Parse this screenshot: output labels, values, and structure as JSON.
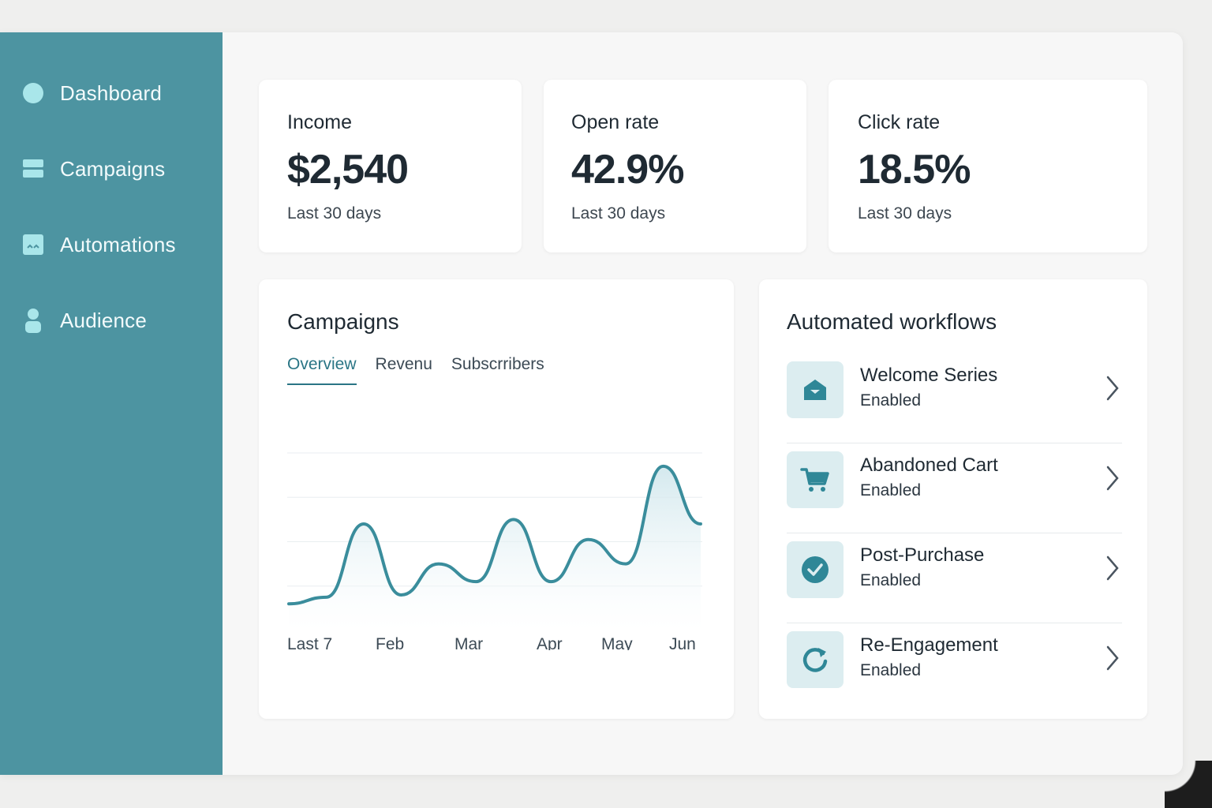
{
  "sidebar": {
    "items": [
      {
        "label": "Dashboard",
        "icon": "circle-icon"
      },
      {
        "label": "Campaigns",
        "icon": "layers-icon"
      },
      {
        "label": "Automations",
        "icon": "automation-icon"
      },
      {
        "label": "Audience",
        "icon": "person-icon"
      }
    ]
  },
  "stats": [
    {
      "title": "Income",
      "value": "$2,540",
      "sub": "Last 30 days"
    },
    {
      "title": "Open rate",
      "value": "42.9%",
      "sub": "Last 30 days"
    },
    {
      "title": "Click rate",
      "value": "18.5%",
      "sub": "Last 30 days"
    }
  ],
  "campaigns": {
    "title": "Campaigns",
    "tabs": [
      "Overview",
      "Revenu",
      "Subscrribers"
    ],
    "active_tab": "Overview"
  },
  "chart_data": {
    "type": "area",
    "x_labels": [
      "Last 7",
      "Feb",
      "Mar",
      "Apr",
      "May",
      "Jun"
    ],
    "values": [
      12,
      15,
      48,
      16,
      30,
      22,
      50,
      22,
      41,
      30,
      74,
      48
    ],
    "ylim": [
      0,
      80
    ],
    "grid": true,
    "legend": "none"
  },
  "workflows": {
    "title": "Automated workflows",
    "items": [
      {
        "name": "Welcome Series",
        "status": "Enabled",
        "icon": "envelope-icon"
      },
      {
        "name": "Abandoned Cart",
        "status": "Enabled",
        "icon": "cart-icon"
      },
      {
        "name": "Post-Purchase",
        "status": "Enabled",
        "icon": "check-circle-icon"
      },
      {
        "name": "Re-Engagement",
        "status": "Enabled",
        "icon": "refresh-icon"
      }
    ]
  },
  "colors": {
    "sidebar": "#4d94a1",
    "accent": "#2a7585",
    "line": "#3a8d9c",
    "icon_bg": "#dcedf0"
  }
}
